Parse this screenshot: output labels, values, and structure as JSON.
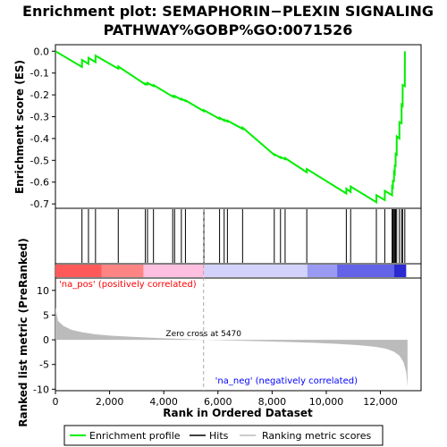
{
  "chart_data": {
    "type": "line",
    "title_line1": "Enrichment plot: SEMAPHORIN−PLEXIN SIGNALING",
    "title_line2": "PATHWAY%GOBP%GO:0071526",
    "xlabel": "Rank in Ordered Dataset",
    "ylabel_top": "Enrichment score (ES)",
    "ylabel_bottom": "Ranked list metric (PreRanked)",
    "xlim": [
      0,
      13500
    ],
    "es_ylim": [
      -0.72,
      0.03
    ],
    "metric_ylim": [
      -10.3,
      12.5
    ],
    "x_ticks": [
      0,
      2000,
      4000,
      6000,
      8000,
      10000,
      12000
    ],
    "x_tick_labels": [
      "0",
      "2,000",
      "4,000",
      "6,000",
      "8,000",
      "10,000",
      "12,000"
    ],
    "es_ticks": [
      0.0,
      -0.1,
      -0.2,
      -0.3,
      -0.4,
      -0.5,
      -0.6,
      -0.7
    ],
    "es_tick_labels": [
      "0.0",
      "-0.1",
      "-0.2",
      "-0.3",
      "-0.4",
      "-0.5",
      "-0.6",
      "-0.7"
    ],
    "metric_ticks": [
      10,
      5,
      0,
      -5,
      -10
    ],
    "metric_tick_labels": [
      "10",
      "5",
      "0",
      "-5",
      "-10"
    ],
    "hits": [
      980,
      1220,
      1480,
      2320,
      3320,
      3400,
      3620,
      4330,
      4400,
      4650,
      4800,
      5480,
      6060,
      6230,
      6350,
      6910,
      8080,
      8310,
      8480,
      9280,
      10740,
      10900,
      11850,
      12160,
      12430,
      12460,
      12500,
      12530,
      12560,
      12600,
      12700,
      12780,
      12820,
      12900
    ],
    "es_curve": {
      "x": [
        0,
        980,
        981,
        1220,
        1221,
        1480,
        1481,
        2320,
        2321,
        3320,
        3321,
        3400,
        3401,
        3620,
        3621,
        4330,
        4331,
        4400,
        4401,
        4650,
        4651,
        4800,
        4801,
        5480,
        5481,
        6060,
        6061,
        6230,
        6231,
        6350,
        6351,
        6910,
        6911,
        8080,
        8081,
        8310,
        8311,
        8480,
        8481,
        9280,
        9281,
        10740,
        10741,
        10900,
        10901,
        11850,
        11851,
        12160,
        12161,
        12430,
        12431,
        12460,
        12461,
        12500,
        12501,
        12530,
        12531,
        12560,
        12561,
        12600,
        12601,
        12700,
        12701,
        12780,
        12781,
        12820,
        12821,
        12900,
        12901
      ],
      "y": [
        0.0,
        -0.072,
        -0.04,
        -0.058,
        -0.03,
        -0.05,
        -0.02,
        -0.08,
        -0.07,
        -0.152,
        -0.148,
        -0.152,
        -0.145,
        -0.16,
        -0.155,
        -0.208,
        -0.205,
        -0.21,
        -0.205,
        -0.222,
        -0.218,
        -0.228,
        -0.225,
        -0.275,
        -0.27,
        -0.31,
        -0.305,
        -0.318,
        -0.314,
        -0.322,
        -0.318,
        -0.356,
        -0.35,
        -0.475,
        -0.472,
        -0.488,
        -0.485,
        -0.495,
        -0.49,
        -0.555,
        -0.54,
        -0.652,
        -0.63,
        -0.645,
        -0.62,
        -0.692,
        -0.66,
        -0.682,
        -0.64,
        -0.66,
        -0.62,
        -0.624,
        -0.59,
        -0.6,
        -0.555,
        -0.56,
        -0.52,
        -0.53,
        -0.465,
        -0.48,
        -0.39,
        -0.4,
        -0.325,
        -0.33,
        -0.245,
        -0.25,
        -0.155,
        -0.16,
        0.0
      ]
    },
    "metric_curve": {
      "x": [
        0,
        100,
        300,
        600,
        1000,
        1500,
        2000,
        3000,
        4000,
        5000,
        5470,
        6500,
        8000,
        9500,
        10500,
        11200,
        11800,
        12200,
        12500,
        12700,
        12850,
        12950,
        13000
      ],
      "y": [
        6.5,
        3.8,
        2.8,
        2.0,
        1.5,
        1.1,
        0.85,
        0.55,
        0.3,
        0.1,
        0.0,
        -0.15,
        -0.35,
        -0.6,
        -0.85,
        -1.1,
        -1.4,
        -1.8,
        -2.4,
        -3.2,
        -4.5,
        -6.5,
        -9.5
      ]
    },
    "gradient_segments": [
      {
        "x0": 0,
        "x1": 1700,
        "color": "#ff5959"
      },
      {
        "x0": 1700,
        "x1": 3250,
        "color": "#ff8585"
      },
      {
        "x0": 3250,
        "x1": 5500,
        "color": "#ffbfe0"
      },
      {
        "x0": 5500,
        "x1": 9300,
        "color": "#d2d2fa"
      },
      {
        "x0": 9300,
        "x1": 10400,
        "color": "#9a9af2"
      },
      {
        "x0": 10400,
        "x1": 12500,
        "color": "#6363e8"
      },
      {
        "x0": 12500,
        "x1": 12950,
        "color": "#2a2ad0"
      }
    ],
    "zero_cross_label": "Zero cross at 5470",
    "zero_cross_x": 5470,
    "pos_label": "'na_pos' (positively correlated)",
    "neg_label": "'na_neg' (negatively correlated)",
    "legend": {
      "items": [
        {
          "label": "Enrichment profile",
          "color": "#00ee00"
        },
        {
          "label": "Hits",
          "color": "#000000"
        },
        {
          "label": "Ranking metric scores",
          "color": "#bbbbbb"
        }
      ]
    },
    "colors": {
      "es_line": "#00ee00",
      "metric_fill": "#bbbbbb",
      "pos_label": "#ff0000",
      "neg_label": "#0000ff"
    }
  }
}
